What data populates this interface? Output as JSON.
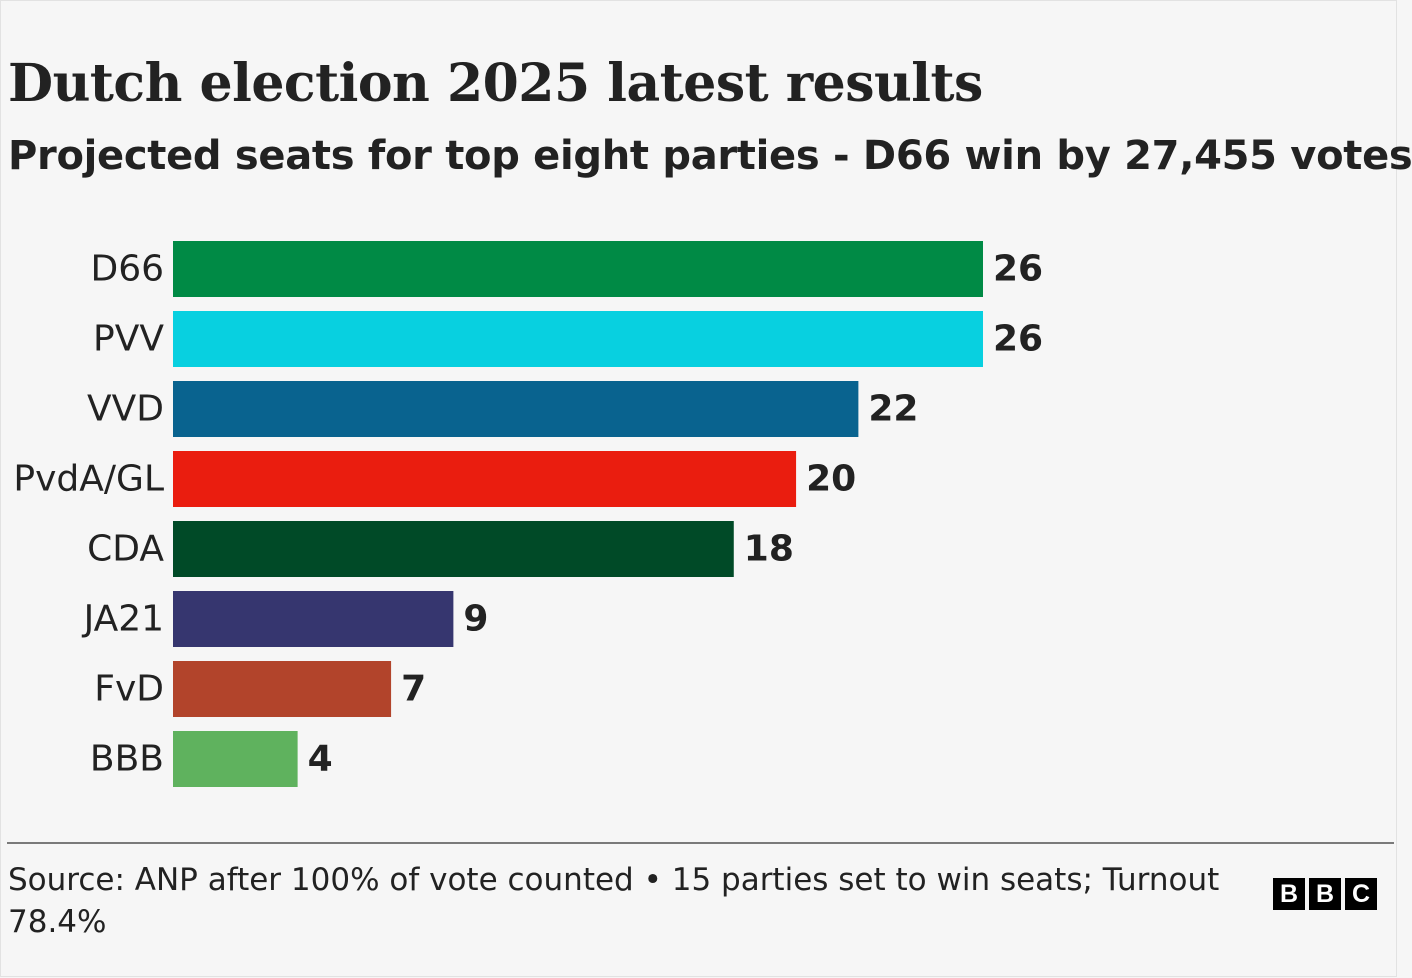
{
  "header": {
    "title": "Dutch election 2025 latest results",
    "subtitle": "Projected seats for top eight parties - D66 win by 27,455 votes"
  },
  "footer": {
    "source": "Source: ANP after 100% of vote counted • 15 parties set to win seats; Turnout 78.4%",
    "logo_letters": [
      "B",
      "B",
      "C"
    ]
  },
  "chart_data": {
    "type": "bar",
    "orientation": "horizontal",
    "title": "Dutch election 2025 latest results",
    "subtitle": "Projected seats for top eight parties - D66 win by 27,455 votes",
    "xlabel": "",
    "ylabel": "",
    "xlim": [
      0,
      26
    ],
    "grid": false,
    "legend": "none",
    "categories": [
      "D66",
      "PVV",
      "VVD",
      "PvdA/GL",
      "CDA",
      "JA21",
      "FvD",
      "BBB"
    ],
    "values": [
      26,
      26,
      22,
      20,
      18,
      9,
      7,
      4
    ],
    "colors": [
      "#008a45",
      "#08d0e0",
      "#09638f",
      "#ea1d0f",
      "#004a27",
      "#36366f",
      "#b2442b",
      "#5fb25e"
    ]
  }
}
